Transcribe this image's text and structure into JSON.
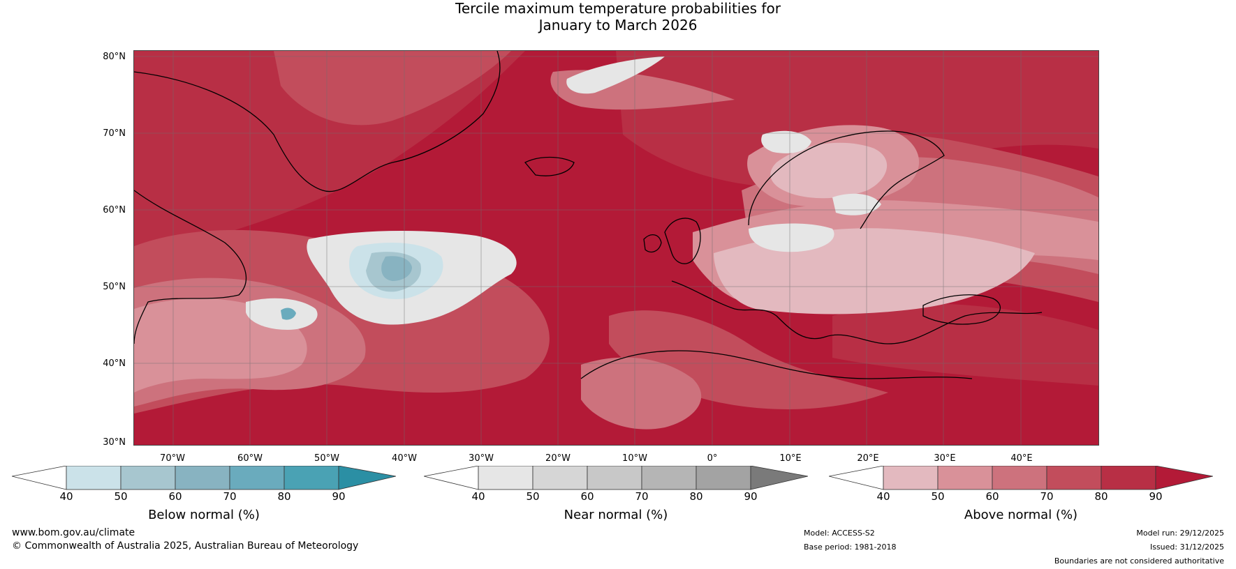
{
  "title": {
    "line1": "Tercile maximum temperature probabilities for",
    "line2": "January to March 2026"
  },
  "latitude_labels": [
    "80°N",
    "70°N",
    "60°N",
    "50°N",
    "40°N",
    "30°N"
  ],
  "longitude_labels": [
    "70°W",
    "60°W",
    "50°W",
    "40°W",
    "30°W",
    "20°W",
    "10°W",
    "0°",
    "10°E",
    "20°E",
    "30°E",
    "40°E"
  ],
  "legends": {
    "below": {
      "label": "Below normal (%)",
      "ticks": [
        "40",
        "50",
        "60",
        "70",
        "80",
        "90"
      ],
      "colors": [
        "#ffffff",
        "#cbe2e9",
        "#a7c6cf",
        "#88b3c1",
        "#6aabbd",
        "#4aa2b4",
        "#2b8fa4"
      ]
    },
    "near": {
      "label": "Near normal (%)",
      "ticks": [
        "40",
        "50",
        "60",
        "70",
        "80",
        "90"
      ],
      "colors": [
        "#ffffff",
        "#e6e6e6",
        "#d6d6d6",
        "#c8c8c8",
        "#b5b5b5",
        "#a3a3a3",
        "#7a7a7a"
      ]
    },
    "above": {
      "label": "Above normal (%)",
      "ticks": [
        "40",
        "50",
        "60",
        "70",
        "80",
        "90"
      ],
      "colors": [
        "#ffffff",
        "#e3b9bf",
        "#d99199",
        "#cd727d",
        "#c24d5c",
        "#b82f45",
        "#b31a37"
      ]
    }
  },
  "footer": {
    "website": "www.bom.gov.au/climate",
    "copyright": "© Commonwealth of Australia 2025, Australian Bureau of Meteorology",
    "model": "Model: ACCESS-S2",
    "base_period": "Base period: 1981-2018",
    "model_run": "Model run: 29/12/2025",
    "issued": "Issued: 31/12/2025",
    "disclaimer": "Boundaries are not considered authoritative"
  }
}
